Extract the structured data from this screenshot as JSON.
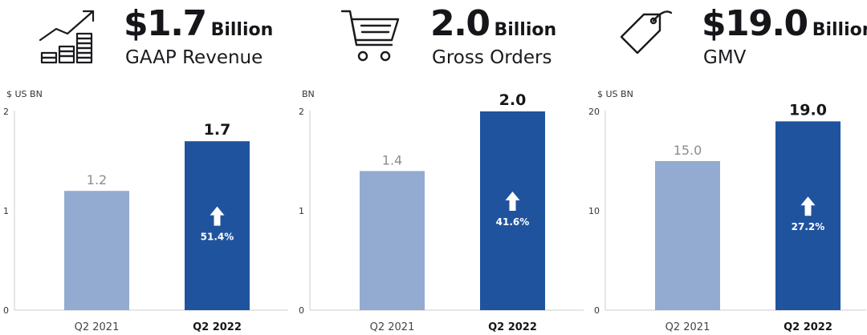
{
  "panels": [
    {
      "icon": "growth-chart-icon",
      "kpi_value": "$1.7",
      "kpi_unit": "Billion",
      "kpi_label": "GAAP Revenue"
    },
    {
      "icon": "shopping-cart-icon",
      "kpi_value": "2.0",
      "kpi_unit": "Billion",
      "kpi_label": "Gross Orders"
    },
    {
      "icon": "price-tag-icon",
      "kpi_value": "$19.0",
      "kpi_unit": "Billion",
      "kpi_label": "GMV"
    }
  ],
  "colors": {
    "light_bar": "#93abd0",
    "dark_bar": "#20539e",
    "axis": "#cccccc",
    "growth_arrow": "#ffffff"
  },
  "chart_data": [
    {
      "type": "bar",
      "unit_label": "$ US BN",
      "categories": [
        "Q2 2021",
        "Q2 2022"
      ],
      "values": [
        1.2,
        1.7
      ],
      "value_labels": [
        "1.2",
        "1.7"
      ],
      "ylim": [
        0,
        2
      ],
      "yticks": [
        0,
        1,
        2
      ],
      "ytick_labels": [
        "0",
        "1",
        "2"
      ],
      "growth": "51.4%",
      "grid": false
    },
    {
      "type": "bar",
      "unit_label": "BN",
      "categories": [
        "Q2 2021",
        "Q2 2022"
      ],
      "values": [
        1.4,
        2.0
      ],
      "value_labels": [
        "1.4",
        "2.0"
      ],
      "ylim": [
        0,
        2
      ],
      "yticks": [
        0,
        1,
        2
      ],
      "ytick_labels": [
        "0",
        "1",
        "2"
      ],
      "growth": "41.6%",
      "grid": false
    },
    {
      "type": "bar",
      "unit_label": "$ US BN",
      "categories": [
        "Q2 2021",
        "Q2 2022"
      ],
      "values": [
        15.0,
        19.0
      ],
      "value_labels": [
        "15.0",
        "19.0"
      ],
      "ylim": [
        0,
        20
      ],
      "yticks": [
        0,
        10,
        20
      ],
      "ytick_labels": [
        "0",
        "10",
        "20"
      ],
      "growth": "27.2%",
      "grid": false
    }
  ]
}
